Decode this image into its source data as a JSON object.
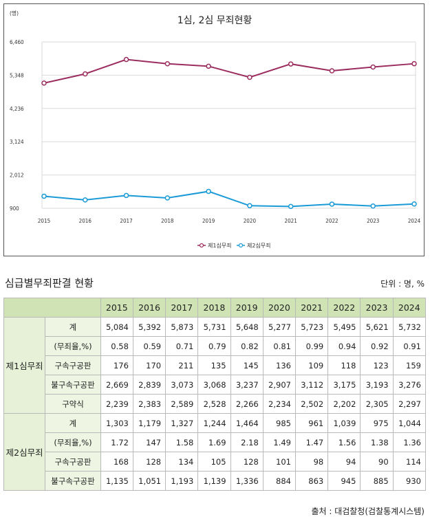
{
  "chart_data": {
    "type": "line",
    "title": "1심, 2심 무죄현황",
    "y_unit": "(명)",
    "x": [
      "2015",
      "2016",
      "2017",
      "2018",
      "2019",
      "2020",
      "2021",
      "2022",
      "2023",
      "2024"
    ],
    "yticks": [
      900,
      2012,
      3124,
      4236,
      5348,
      6460
    ],
    "ytick_labels": [
      "900",
      "2,012",
      "3,124",
      "4,236",
      "5,348",
      "6,460"
    ],
    "ylim": [
      900,
      6460
    ],
    "grid": true,
    "legend_position": "bottom-center",
    "series": [
      {
        "name": "제1심무죄",
        "color": "#9b2c5e",
        "values": [
          5084,
          5392,
          5873,
          5731,
          5648,
          5277,
          5723,
          5495,
          5621,
          5732
        ]
      },
      {
        "name": "제2심무죄",
        "color": "#1a9ad6",
        "values": [
          1303,
          1179,
          1327,
          1244,
          1464,
          985,
          961,
          1039,
          975,
          1044
        ]
      }
    ]
  },
  "table": {
    "title": "심급별무죄판결 현황",
    "unit": "단위 : 명, %",
    "years": [
      "2015",
      "2016",
      "2017",
      "2018",
      "2019",
      "2020",
      "2021",
      "2022",
      "2023",
      "2024"
    ],
    "groups": [
      {
        "label": "제1심무죄",
        "rows": [
          {
            "label": "계",
            "values": [
              "5,084",
              "5,392",
              "5,873",
              "5,731",
              "5,648",
              "5,277",
              "5,723",
              "5,495",
              "5,621",
              "5,732"
            ]
          },
          {
            "label": "(무죄율,%)",
            "values": [
              "0.58",
              "0.59",
              "0.71",
              "0.79",
              "0.82",
              "0.81",
              "0.99",
              "0.94",
              "0.92",
              "0.91"
            ]
          },
          {
            "label": "구속구공판",
            "values": [
              "176",
              "170",
              "211",
              "135",
              "145",
              "136",
              "109",
              "118",
              "123",
              "159"
            ]
          },
          {
            "label": "불구속구공판",
            "values": [
              "2,669",
              "2,839",
              "3,073",
              "3,068",
              "3,237",
              "2,907",
              "3,112",
              "3,175",
              "3,193",
              "3,276"
            ]
          },
          {
            "label": "구약식",
            "values": [
              "2,239",
              "2,383",
              "2,589",
              "2,528",
              "2,266",
              "2,234",
              "2,502",
              "2,202",
              "2,305",
              "2,297"
            ]
          }
        ]
      },
      {
        "label": "제2심무죄",
        "rows": [
          {
            "label": "계",
            "values": [
              "1,303",
              "1,179",
              "1,327",
              "1,244",
              "1,464",
              "985",
              "961",
              "1,039",
              "975",
              "1,044"
            ]
          },
          {
            "label": "(무죄율,%)",
            "values": [
              "1.72",
              "147",
              "1.58",
              "1.69",
              "2.18",
              "1.49",
              "1.47",
              "1.56",
              "1.38",
              "1.36"
            ]
          },
          {
            "label": "구속구공판",
            "values": [
              "168",
              "128",
              "134",
              "105",
              "128",
              "101",
              "98",
              "94",
              "90",
              "114"
            ]
          },
          {
            "label": "불구속구공판",
            "values": [
              "1,135",
              "1,051",
              "1,193",
              "1,139",
              "1,336",
              "884",
              "863",
              "945",
              "885",
              "930"
            ]
          }
        ]
      }
    ]
  },
  "source": "출처 : 대검찰청(검찰통계시스템)"
}
